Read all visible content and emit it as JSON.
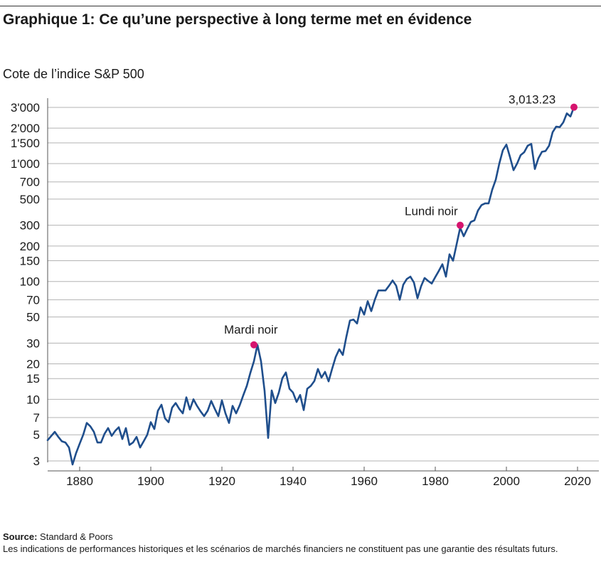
{
  "header": {
    "title": "Graphique 1: Ce qu’une perspective à long terme met en évidence",
    "y_axis_label": "Cote de l’indice S&P 500"
  },
  "footer": {
    "source_label": "Source:",
    "source_value": "Standard & Poors",
    "disclaimer": "Les indications de performances historiques et les scénarios de marchés financiers ne constituent pas une garantie des résultats futurs."
  },
  "chart_data": {
    "type": "line",
    "title": "Graphique 1: Ce qu’une perspective à long terme met en évidence",
    "ylabel": "Cote de l’indice S&P 500",
    "xlabel": "",
    "y_scale": "log",
    "xlim": [
      1871,
      2026
    ],
    "ylim": [
      3,
      3000
    ],
    "grid": "horizontal",
    "line_color": "#1f4e8c",
    "marker_color": "#d6146e",
    "gridline_color": "#b3b3b3",
    "x_ticks": [
      1880,
      1900,
      1920,
      1940,
      1960,
      1980,
      2000,
      2020
    ],
    "x_tick_labels": [
      "1880",
      "1900",
      "1920",
      "1940",
      "1960",
      "1980",
      "2000",
      "2020"
    ],
    "y_ticks": [
      3,
      5,
      7,
      10,
      15,
      20,
      30,
      50,
      70,
      100,
      150,
      200,
      300,
      500,
      700,
      1000,
      1500,
      2000,
      3000
    ],
    "y_tick_labels": [
      "3",
      "5",
      "7",
      "10",
      "15",
      "20",
      "30",
      "50",
      "70",
      "100",
      "150",
      "200",
      "300",
      "500",
      "700",
      "1'000",
      "1'500",
      "2'000",
      "3'000"
    ],
    "series": [
      {
        "x": [
          1871,
          1873,
          1874,
          1875,
          1876,
          1877,
          1878,
          1879,
          1880,
          1881,
          1882,
          1883,
          1884,
          1885,
          1886,
          1887,
          1888,
          1889,
          1890,
          1891,
          1892,
          1893,
          1894,
          1895,
          1896,
          1897,
          1898,
          1899,
          1900,
          1901,
          1902,
          1903,
          1904,
          1905,
          1906,
          1907,
          1908,
          1909,
          1910,
          1911,
          1912,
          1913,
          1914,
          1915,
          1916,
          1917,
          1918,
          1919,
          1920,
          1921,
          1922,
          1923,
          1924,
          1925,
          1926,
          1927,
          1928,
          1929,
          1930,
          1931,
          1932,
          1933,
          1934,
          1935,
          1936,
          1937,
          1938,
          1939,
          1940,
          1941,
          1942,
          1943,
          1944,
          1945,
          1946,
          1947,
          1948,
          1949,
          1950,
          1951,
          1952,
          1953,
          1954,
          1955,
          1956,
          1957,
          1958,
          1959,
          1960,
          1961,
          1962,
          1963,
          1964,
          1965,
          1966,
          1967,
          1968,
          1969,
          1970,
          1971,
          1972,
          1973,
          1974,
          1975,
          1976,
          1977,
          1978,
          1979,
          1980,
          1981,
          1982,
          1983,
          1984,
          1985,
          1986,
          1987,
          1988,
          1989,
          1990,
          1991,
          1992,
          1993,
          1994,
          1995,
          1996,
          1997,
          1998,
          1999,
          2000,
          2001,
          2002,
          2003,
          2004,
          2005,
          2006,
          2007,
          2008,
          2009,
          2010,
          2011,
          2012,
          2013,
          2014,
          2015,
          2016,
          2017,
          2018,
          2019
        ],
        "y": [
          4.5,
          5.3,
          4.8,
          4.4,
          4.3,
          3.9,
          2.8,
          3.5,
          4.2,
          5.0,
          6.3,
          5.9,
          5.3,
          4.3,
          4.3,
          5.1,
          5.7,
          4.9,
          5.4,
          5.8,
          4.6,
          5.7,
          4.1,
          4.3,
          4.8,
          3.9,
          4.4,
          5.0,
          6.4,
          5.6,
          8.0,
          9.0,
          6.9,
          6.4,
          8.5,
          9.3,
          8.3,
          7.6,
          10.4,
          8.2,
          10.0,
          8.8,
          7.9,
          7.2,
          8.0,
          9.7,
          8.3,
          7.2,
          9.8,
          7.6,
          6.3,
          8.8,
          7.6,
          8.9,
          10.8,
          13.0,
          16.8,
          21.0,
          29.0,
          21.0,
          11.8,
          4.7,
          11.9,
          9.3,
          11.4,
          15.1,
          16.9,
          12.3,
          11.4,
          9.5,
          10.9,
          8.1,
          12.3,
          13.0,
          14.3,
          18.1,
          15.3,
          17.1,
          14.2,
          18.2,
          22.9,
          26.6,
          23.8,
          34.0,
          46.6,
          47.5,
          44.0,
          60.3,
          52.3,
          68.0,
          56.0,
          70.0,
          84.0,
          84.0,
          84.0,
          92.0,
          102.0,
          92.0,
          70.0,
          94.0,
          105.0,
          110.0,
          98.0,
          72.0,
          91.0,
          107.0,
          101.0,
          96.0,
          109.0,
          123.0,
          140.0,
          110.0,
          170.0,
          150.0,
          207.0,
          286.0,
          242.0,
          280.0,
          320.0,
          330.0,
          400.0,
          445.0,
          460.0,
          460.0,
          600.0,
          730.0,
          1000.0,
          1300.0,
          1450.0,
          1140.0,
          880.0,
          1000.0,
          1180.0,
          1250.0,
          1420.0,
          1470.0,
          900.0,
          1110.0,
          1260.0,
          1280.0,
          1420.0,
          1850.0,
          2060.0,
          2040.0,
          2240.0,
          2670.0,
          2510.0,
          3013.23
        ]
      }
    ],
    "annotations": [
      {
        "label": "Mardi noir",
        "x": 1929,
        "y": 29
      },
      {
        "label": "Lundi noir",
        "x": 1987,
        "y": 300
      },
      {
        "label": "3,013.23",
        "x": 2019,
        "y": 3013.23
      }
    ]
  }
}
